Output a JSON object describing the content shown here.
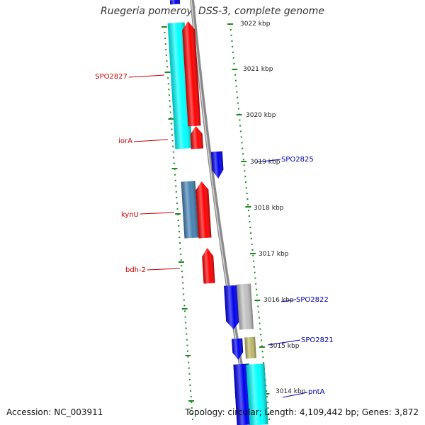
{
  "title": "Ruegeria pomeroyi DSS-3, complete genome",
  "footer": {
    "accession": "Accession: NC_003911",
    "summary": "Topology: circular; Length: 4,109,442 bp; Genes: 3,872"
  },
  "colors": {
    "backbone": "#8a8a8a",
    "tick": "#1d8a1d",
    "label_forward": "#cc0000",
    "label_reverse": "#0000aa",
    "scale_text": "#222222",
    "feature_red": "#ff0000",
    "feature_blue": "#0000ee",
    "feature_cyan": "#00ffff",
    "feature_steelblue": "#4682b4",
    "feature_gray": "#c0c0c0",
    "feature_khaki": "#bdb76b"
  },
  "scale_labels": [
    "3022 kbp",
    "3021 kbp",
    "3020 kbp",
    "3019 kbp",
    "3018 kbp",
    "3017 kbp",
    "3016 kbp",
    "3015 kbp",
    "3014 kbp"
  ],
  "gene_labels_left": [
    "SPO2827",
    "iorA",
    "kynU",
    "bdh-2"
  ],
  "gene_labels_right": [
    "SPO2825",
    "SPO2822",
    "SPO2821",
    "pntA"
  ],
  "features": [
    {
      "color": "feature_blue"
    },
    {
      "color": "feature_cyan"
    },
    {
      "color": "feature_red"
    },
    {
      "color": "feature_red"
    },
    {
      "color": "feature_blue"
    },
    {
      "color": "feature_steelblue"
    },
    {
      "color": "feature_red"
    },
    {
      "color": "feature_red"
    },
    {
      "color": "feature_blue"
    },
    {
      "color": "feature_gray"
    },
    {
      "color": "feature_blue"
    },
    {
      "color": "feature_khaki"
    },
    {
      "color": "feature_blue"
    },
    {
      "color": "feature_cyan"
    }
  ]
}
